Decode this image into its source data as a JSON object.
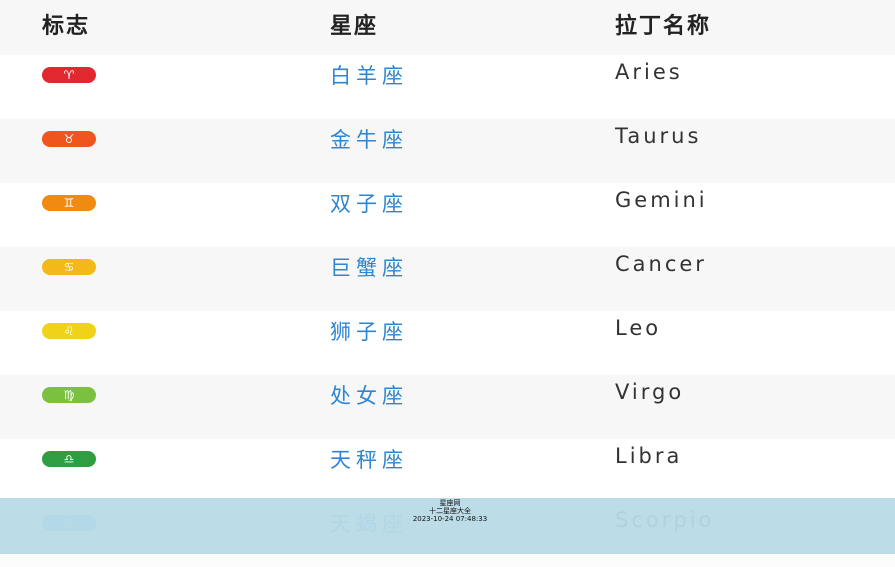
{
  "header": {
    "col_sign": "标志",
    "col_name": "星座",
    "col_latin": "拉丁名称"
  },
  "rows": [
    {
      "symbol": "♈",
      "icon": "aries-icon",
      "color": "#e0282e",
      "name": "白羊座",
      "latin": "Aries"
    },
    {
      "symbol": "♉",
      "icon": "taurus-icon",
      "color": "#f0551e",
      "name": "金牛座",
      "latin": "Taurus"
    },
    {
      "symbol": "♊",
      "icon": "gemini-icon",
      "color": "#f08a10",
      "name": "双子座",
      "latin": "Gemini"
    },
    {
      "symbol": "♋",
      "icon": "cancer-icon",
      "color": "#f5b81a",
      "name": "巨蟹座",
      "latin": "Cancer"
    },
    {
      "symbol": "♌",
      "icon": "leo-icon",
      "color": "#f0d21a",
      "name": "狮子座",
      "latin": "Leo"
    },
    {
      "symbol": "♍",
      "icon": "virgo-icon",
      "color": "#7cc040",
      "name": "处女座",
      "latin": "Virgo"
    },
    {
      "symbol": "♎",
      "icon": "libra-icon",
      "color": "#2e9e40",
      "name": "天秤座",
      "latin": "Libra"
    },
    {
      "symbol": "♏",
      "icon": "scorpio-icon",
      "color": "#3fb8b8",
      "name": "天蝎座",
      "latin": "Scorpio"
    }
  ],
  "watermark": {
    "line1": "星座网",
    "line2": "十二星座大全",
    "line3": "2023-10-24 07:48:33"
  }
}
